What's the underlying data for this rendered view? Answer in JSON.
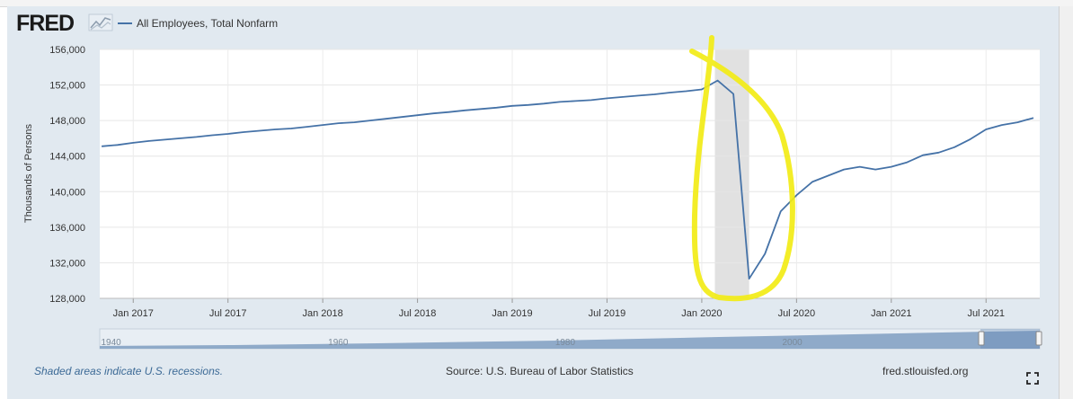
{
  "brand": {
    "logo_text": "FRED"
  },
  "footer": {
    "recession_note": "Shaded areas indicate U.S. recessions.",
    "source": "Source: U.S. Bureau of Labor Statistics",
    "site": "fred.stlouisfed.org"
  },
  "icons": {
    "logo_graph": "line-graph-icon",
    "fullscreen": "fullscreen-icon"
  },
  "colors": {
    "series": "#4572a7",
    "recession": "#e1e1e1",
    "highlight": "#f2ec16",
    "panel": "#e1e9f0"
  },
  "chart_data": {
    "type": "line",
    "title": "",
    "xlabel": "",
    "ylabel": "Thousands of Persons",
    "ylim": [
      128000,
      156000
    ],
    "y_ticks": [
      "128,000",
      "132,000",
      "136,000",
      "140,000",
      "144,000",
      "148,000",
      "152,000",
      "156,000"
    ],
    "x_range": [
      "2016-11",
      "2021-10"
    ],
    "x_ticks": [
      {
        "date": "2017-01",
        "label": "Jan 2017"
      },
      {
        "date": "2017-07",
        "label": "Jul 2017"
      },
      {
        "date": "2018-01",
        "label": "Jan 2018"
      },
      {
        "date": "2018-07",
        "label": "Jul 2018"
      },
      {
        "date": "2019-01",
        "label": "Jan 2019"
      },
      {
        "date": "2019-07",
        "label": "Jul 2019"
      },
      {
        "date": "2020-01",
        "label": "Jan 2020"
      },
      {
        "date": "2020-07",
        "label": "Jul 2020"
      },
      {
        "date": "2021-01",
        "label": "Jan 2021"
      },
      {
        "date": "2021-07",
        "label": "Jul 2021"
      }
    ],
    "grid": true,
    "legend": "top-left",
    "recession": {
      "start": "2020-02",
      "end": "2020-04"
    },
    "navigator_ticks": [
      {
        "year": 1940,
        "label": "1940"
      },
      {
        "year": 1960,
        "label": "1960"
      },
      {
        "year": 1980,
        "label": "1980"
      },
      {
        "year": 2000,
        "label": "2000"
      }
    ],
    "series": [
      {
        "name": "All Employees, Total Nonfarm",
        "points": [
          [
            "2016-11",
            145100
          ],
          [
            "2016-12",
            145250
          ],
          [
            "2017-01",
            145500
          ],
          [
            "2017-02",
            145700
          ],
          [
            "2017-03",
            145850
          ],
          [
            "2017-04",
            146000
          ],
          [
            "2017-05",
            146150
          ],
          [
            "2017-06",
            146350
          ],
          [
            "2017-07",
            146500
          ],
          [
            "2017-08",
            146700
          ],
          [
            "2017-09",
            146850
          ],
          [
            "2017-10",
            147000
          ],
          [
            "2017-11",
            147100
          ],
          [
            "2017-12",
            147300
          ],
          [
            "2018-01",
            147500
          ],
          [
            "2018-02",
            147700
          ],
          [
            "2018-03",
            147800
          ],
          [
            "2018-04",
            148000
          ],
          [
            "2018-05",
            148200
          ],
          [
            "2018-06",
            148400
          ],
          [
            "2018-07",
            148600
          ],
          [
            "2018-08",
            148800
          ],
          [
            "2018-09",
            148950
          ],
          [
            "2018-10",
            149150
          ],
          [
            "2018-11",
            149300
          ],
          [
            "2018-12",
            149450
          ],
          [
            "2019-01",
            149650
          ],
          [
            "2019-02",
            149750
          ],
          [
            "2019-03",
            149900
          ],
          [
            "2019-04",
            150100
          ],
          [
            "2019-05",
            150200
          ],
          [
            "2019-06",
            150300
          ],
          [
            "2019-07",
            150500
          ],
          [
            "2019-08",
            150650
          ],
          [
            "2019-09",
            150800
          ],
          [
            "2019-10",
            150950
          ],
          [
            "2019-11",
            151150
          ],
          [
            "2019-12",
            151300
          ],
          [
            "2020-01",
            151500
          ],
          [
            "2020-02",
            152500
          ],
          [
            "2020-03",
            151000
          ],
          [
            "2020-04",
            130200
          ],
          [
            "2020-05",
            133000
          ],
          [
            "2020-06",
            137800
          ],
          [
            "2020-07",
            139600
          ],
          [
            "2020-08",
            141100
          ],
          [
            "2020-09",
            141800
          ],
          [
            "2020-10",
            142500
          ],
          [
            "2020-11",
            142800
          ],
          [
            "2020-12",
            142500
          ],
          [
            "2021-01",
            142800
          ],
          [
            "2021-02",
            143300
          ],
          [
            "2021-03",
            144100
          ],
          [
            "2021-04",
            144400
          ],
          [
            "2021-05",
            145000
          ],
          [
            "2021-06",
            145900
          ],
          [
            "2021-07",
            147000
          ],
          [
            "2021-08",
            147500
          ],
          [
            "2021-09",
            147800
          ],
          [
            "2021-10",
            148300
          ]
        ]
      }
    ]
  }
}
